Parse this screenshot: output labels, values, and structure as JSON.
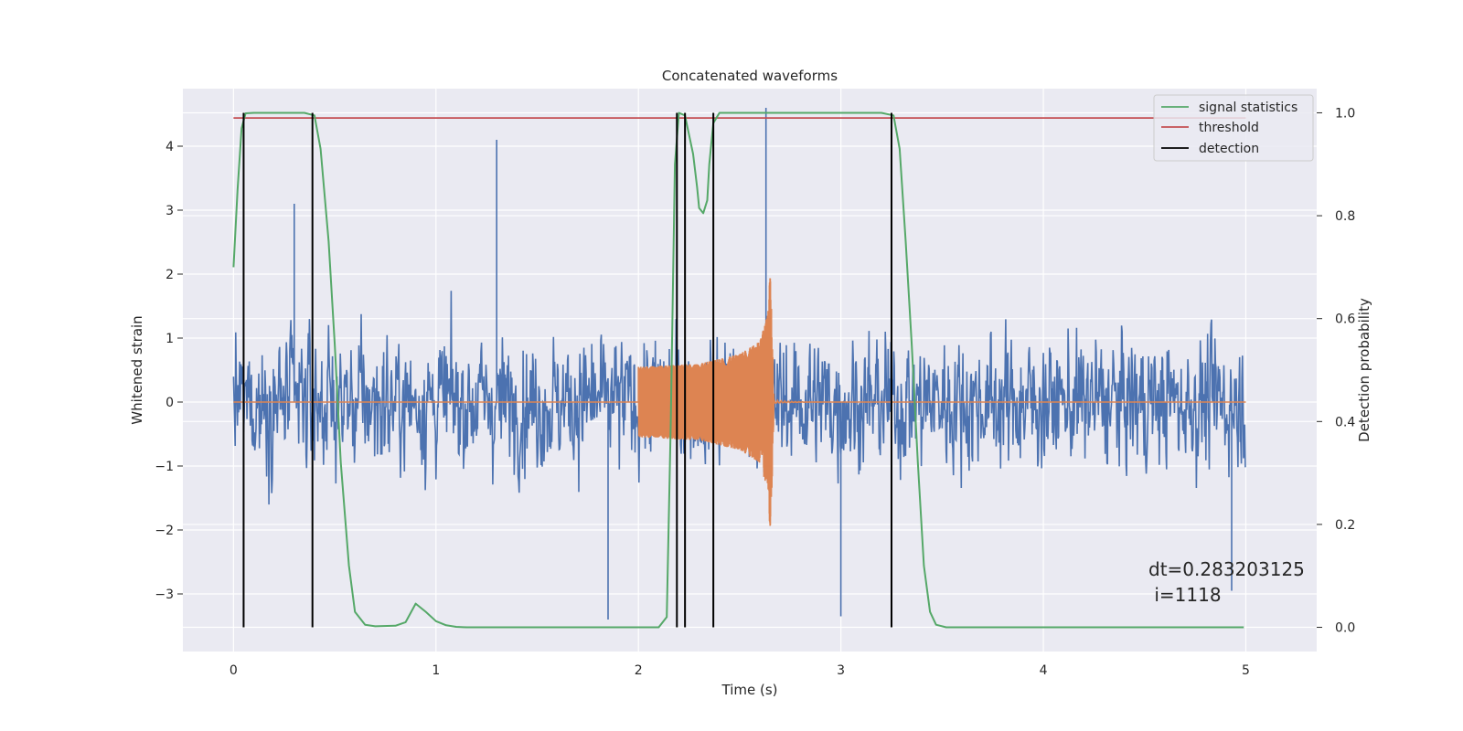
{
  "chart_data": {
    "type": "line",
    "title": "Concatenated waveforms",
    "xlabel": "Time (s)",
    "ylabel": "Whitened strain",
    "ylabel_right": "Detection probability",
    "xlim": [
      -0.25,
      5.35
    ],
    "ylim": [
      -3.9,
      4.9
    ],
    "ylim_right": [
      -0.047,
      1.047
    ],
    "x_ticks": [
      0,
      1,
      2,
      3,
      4,
      5
    ],
    "y_ticks": [
      -3,
      -2,
      -1,
      0,
      1,
      2,
      3,
      4
    ],
    "y_ticks_right": [
      0.0,
      0.2,
      0.4,
      0.6,
      0.8,
      1.0
    ],
    "x_tick_labels": [
      "0",
      "1",
      "2",
      "3",
      "4",
      "5"
    ],
    "y_tick_labels": [
      "−3",
      "−2",
      "−1",
      "0",
      "1",
      "2",
      "3",
      "4"
    ],
    "y_tick_labels_right": [
      "0.0",
      "0.2",
      "0.4",
      "0.6",
      "0.8",
      "1.0"
    ],
    "grid": true,
    "legend_position": "top-right",
    "legend": [
      {
        "label": "signal statistics",
        "color": "#55a868"
      },
      {
        "label": "threshold",
        "color": "#c44e52"
      },
      {
        "label": "detection",
        "color": "#000000"
      }
    ],
    "series": [
      {
        "kind": "noise",
        "axis": "left",
        "color": "#4c72b0",
        "x_range": [
          0,
          5
        ],
        "approx_amplitude": 1.3,
        "peaks": [
          [
            0.3,
            3.1
          ],
          [
            1.3,
            4.1
          ],
          [
            1.85,
            -3.4
          ],
          [
            2.63,
            4.6
          ],
          [
            3.0,
            -3.35
          ],
          [
            4.93,
            -2.95
          ]
        ]
      },
      {
        "kind": "chirp",
        "axis": "left",
        "color": "#dd8452",
        "x_start": 2.0,
        "x_merger": 2.65,
        "x_end": 2.67,
        "envelope": [
          [
            2.0,
            0.55
          ],
          [
            2.3,
            0.6
          ],
          [
            2.5,
            0.75
          ],
          [
            2.6,
            0.95
          ],
          [
            2.64,
            1.4
          ],
          [
            2.65,
            2.05
          ],
          [
            2.66,
            1.3
          ],
          [
            2.67,
            0.0
          ]
        ]
      },
      {
        "name": "signal statistics",
        "axis": "right",
        "color": "#55a868",
        "x": [
          0.0,
          0.02,
          0.04,
          0.06,
          0.1,
          0.35,
          0.4,
          0.43,
          0.47,
          0.5,
          0.53,
          0.57,
          0.6,
          0.65,
          0.7,
          0.8,
          0.85,
          0.9,
          0.95,
          1.0,
          1.05,
          1.1,
          1.15,
          1.5,
          1.9,
          2.0,
          2.1,
          2.14,
          2.16,
          2.18,
          2.2,
          2.23,
          2.27,
          2.29,
          2.3,
          2.32,
          2.34,
          2.35,
          2.37,
          2.4,
          2.5,
          3.2,
          3.26,
          3.29,
          3.32,
          3.35,
          3.38,
          3.41,
          3.44,
          3.47,
          3.52,
          3.6,
          4.0,
          4.5,
          4.99
        ],
        "y": [
          0.7,
          0.85,
          0.97,
          0.999,
          1.0,
          1.0,
          0.995,
          0.93,
          0.75,
          0.55,
          0.32,
          0.12,
          0.03,
          0.005,
          0.002,
          0.003,
          0.01,
          0.046,
          0.03,
          0.012,
          0.004,
          0.001,
          0.0,
          0.0,
          0.0,
          0.0,
          0.0,
          0.02,
          0.4,
          0.9,
          1.0,
          0.995,
          0.92,
          0.855,
          0.815,
          0.805,
          0.83,
          0.9,
          0.98,
          1.0,
          1.0,
          1.0,
          0.995,
          0.93,
          0.75,
          0.55,
          0.32,
          0.12,
          0.03,
          0.005,
          0.0,
          0.0,
          0.0,
          0.0,
          0.0
        ]
      },
      {
        "name": "threshold",
        "axis": "right",
        "color": "#c44e52",
        "x": [
          0,
          5
        ],
        "y": [
          0.99,
          0.99
        ]
      }
    ],
    "detections": [
      0.05,
      0.39,
      2.19,
      2.23,
      2.37,
      3.25
    ],
    "annotation": {
      "line1": "dt=0.283203125",
      "line2": " i=1118"
    }
  }
}
